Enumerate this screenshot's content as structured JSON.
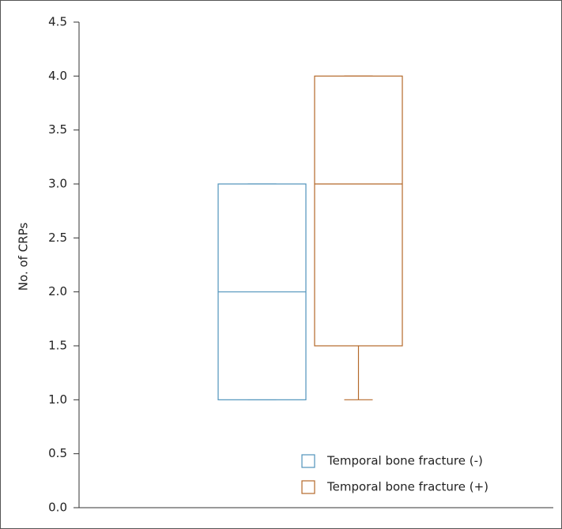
{
  "chart_data": {
    "type": "box",
    "y_label": "No. of CRPs",
    "ylim": [
      0,
      4.5
    ],
    "yticks": [
      {
        "value": 0,
        "label": "0.0"
      },
      0.5,
      {
        "value": 1,
        "label": "1.0"
      },
      1.5,
      {
        "value": 2,
        "label": "2.0"
      },
      2.5,
      {
        "value": 3,
        "label": "3.0"
      },
      3.5,
      {
        "value": 4,
        "label": "4.0"
      },
      4.5
    ],
    "legend": "lower right",
    "series": [
      {
        "name": "Temporal bone fracture (-)",
        "color": "#4f93bb",
        "min": 1.0,
        "q1": 1.0,
        "median": 2.0,
        "q3": 3.0,
        "max": 3.0
      },
      {
        "name": "Temporal bone fracture (+)",
        "color": "#b4692a",
        "min": 1.0,
        "q1": 1.5,
        "median": 3.0,
        "q3": 4.0,
        "max": 4.0
      }
    ]
  }
}
